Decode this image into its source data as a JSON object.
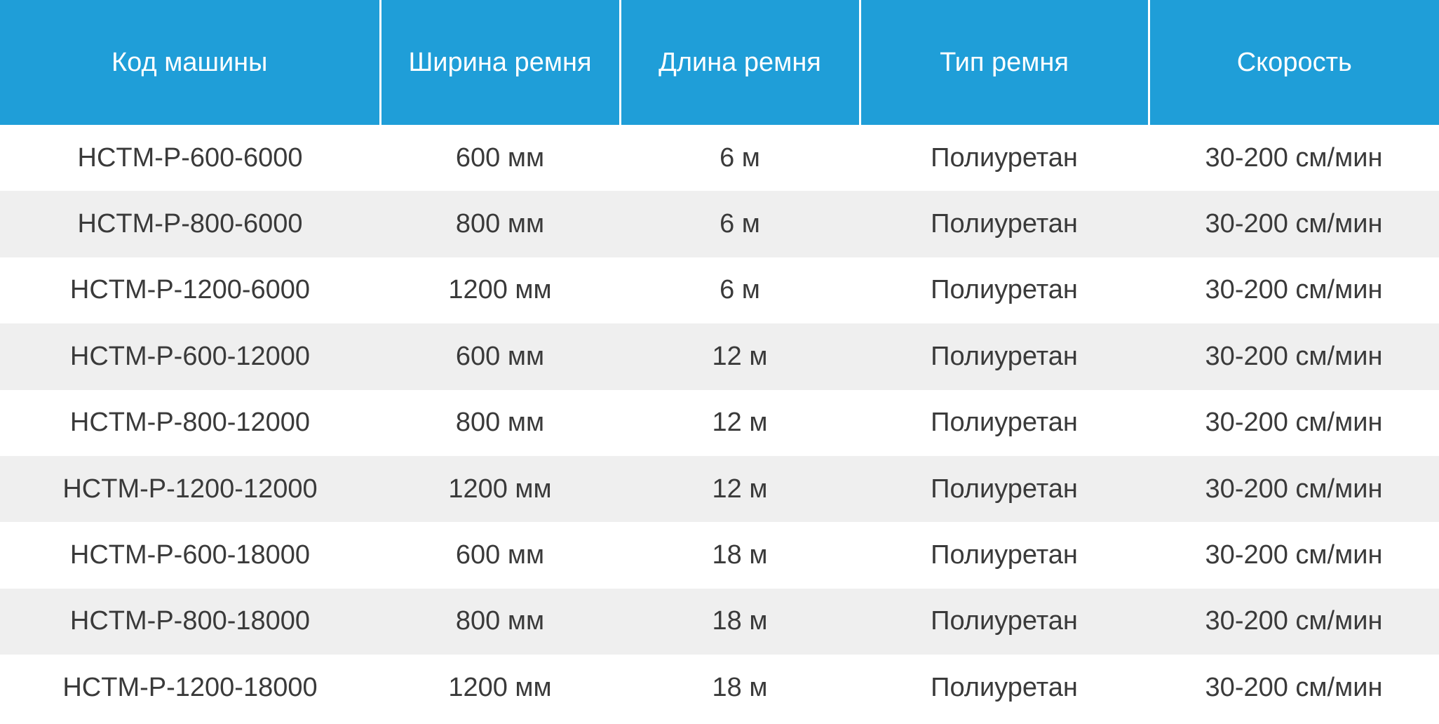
{
  "table": {
    "headers": [
      "Код машины",
      "Ширина ремня",
      "Длина ремня",
      "Тип ремня",
      "Скорость"
    ],
    "rows": [
      [
        "HCTM-P-600-6000",
        "600 мм",
        "6 м",
        "Полиуретан",
        "30-200 см/мин"
      ],
      [
        "HCTM-P-800-6000",
        "800 мм",
        "6 м",
        "Полиуретан",
        "30-200 см/мин"
      ],
      [
        "HCTM-P-1200-6000",
        "1200 мм",
        "6 м",
        "Полиуретан",
        "30-200 см/мин"
      ],
      [
        "HCTM-P-600-12000",
        "600 мм",
        "12 м",
        "Полиуретан",
        "30-200 см/мин"
      ],
      [
        "HCTM-P-800-12000",
        "800 мм",
        "12 м",
        "Полиуретан",
        "30-200 см/мин"
      ],
      [
        "HCTM-P-1200-12000",
        "1200 мм",
        "12 м",
        "Полиуретан",
        "30-200 см/мин"
      ],
      [
        "HCTM-P-600-18000",
        "600 мм",
        "18 м",
        "Полиуретан",
        "30-200 см/мин"
      ],
      [
        "HCTM-P-800-18000",
        "800 мм",
        "18 м",
        "Полиуретан",
        "30-200 см/мин"
      ],
      [
        "HCTM-P-1200-18000",
        "1200 мм",
        "18 м",
        "Полиуретан",
        "30-200 см/мин"
      ]
    ]
  },
  "colors": {
    "header_bg": "#1f9ed8",
    "header_text": "#ffffff",
    "row_alt_bg": "#efefef",
    "body_text": "#3a3a3a"
  }
}
